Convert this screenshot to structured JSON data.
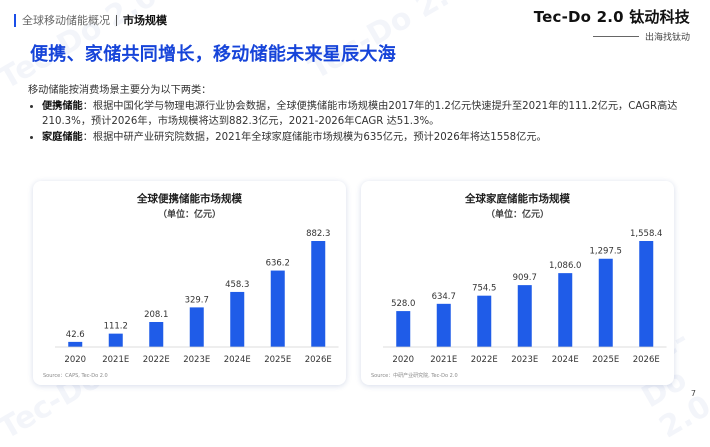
{
  "header": {
    "breadcrumb": "全球移动储能概况",
    "current": "市场规模"
  },
  "brand": {
    "logo": "Tec-Do 2.0 钛动科技",
    "slogan": "出海找钛动",
    "watermark": "Tec-Do 2.0"
  },
  "headline": "便携、家储共同增长，移动储能未来星辰大海",
  "intro": {
    "lead": "移动储能按消费场景主要分为以下两类：",
    "items": [
      {
        "term": "便携储能",
        "text": "：根据中国化学与物理电源行业协会数据，全球便携储能市场规模由2017年的1.2亿元快速提升至2021年的111.2亿元，CAGR高达210.3%，预计2026年，市场规模将达到882.3亿元，2021-2026年CAGR 达51.3%。"
      },
      {
        "term": "家庭储能",
        "text": "：根据中研产业研究院数据，2021年全球家庭储能市场规模为635亿元，预计2026年将达1558亿元。"
      }
    ]
  },
  "colors": {
    "bar": "#1f5ce8",
    "headline": "#1644d9"
  },
  "chart_data": [
    {
      "type": "bar",
      "title": "全球便携储能市场规模",
      "subtitle": "（单位：亿元）",
      "categories": [
        "2020",
        "2021E",
        "2022E",
        "2023E",
        "2024E",
        "2025E",
        "2026E"
      ],
      "values": [
        42.6,
        111.2,
        208.1,
        329.7,
        458.3,
        636.2,
        882.3
      ],
      "labels": [
        "42.6",
        "111.2",
        "208.1",
        "329.7",
        "458.3",
        "636.2",
        "882.3"
      ],
      "source": "Source：CAPS, Tec-Do 2.0"
    },
    {
      "type": "bar",
      "title": "全球家庭储能市场规模",
      "subtitle": "（单位：亿元）",
      "categories": [
        "2020",
        "2021E",
        "2022E",
        "2023E",
        "2024E",
        "2025E",
        "2026E"
      ],
      "values": [
        528.0,
        634.7,
        754.5,
        909.7,
        1086.0,
        1297.5,
        1558.4
      ],
      "labels": [
        "528.0",
        "634.7",
        "754.5",
        "909.7",
        "1,086.0",
        "1,297.5",
        "1,558.4"
      ],
      "source": "Source：中研产业研究院, Tec-Do 2.0"
    }
  ],
  "page_number": "7"
}
